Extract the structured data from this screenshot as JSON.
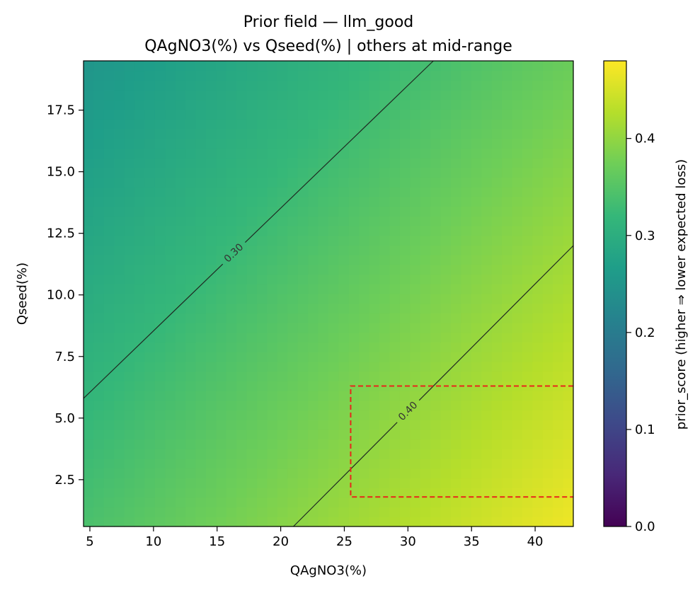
{
  "chart_data": {
    "type": "heatmap",
    "title": "Prior field — llm_good",
    "subtitle": "QAgNO3(%) vs Qseed(%) | others at mid-range",
    "xlabel": "QAgNO3(%)",
    "ylabel": "Qseed(%)",
    "xlim": [
      4.5,
      43.0
    ],
    "ylim": [
      0.6,
      19.5
    ],
    "xticks": [
      5,
      10,
      15,
      20,
      25,
      30,
      35,
      40
    ],
    "yticks": [
      2.5,
      5.0,
      7.5,
      10.0,
      12.5,
      15.0,
      17.5
    ],
    "field": {
      "description_model": "linear",
      "value_at_xmin_ymin": 0.34,
      "value_at_xmax_ymin": 0.47,
      "value_at_xmin_ymax": 0.25,
      "value_at_xmax_ymax": 0.37
    },
    "colormap": "viridis",
    "colorbar": {
      "label": "prior_score (higher ⇒ lower expected loss)",
      "range": [
        0.0,
        0.48
      ],
      "ticks": [
        0.0,
        0.1,
        0.2,
        0.3,
        0.4
      ]
    },
    "contours": [
      {
        "level": 0.3,
        "label": "0.30",
        "line": [
          [
            4.5,
            5.8
          ],
          [
            32.0,
            19.5
          ]
        ]
      },
      {
        "level": 0.4,
        "label": "0.40",
        "line": [
          [
            21.0,
            0.6
          ],
          [
            43.0,
            12.0
          ]
        ]
      }
    ],
    "region_box": {
      "color": "#e8261b",
      "x": [
        25.5,
        43.0
      ],
      "y": [
        1.8,
        6.3
      ]
    }
  }
}
